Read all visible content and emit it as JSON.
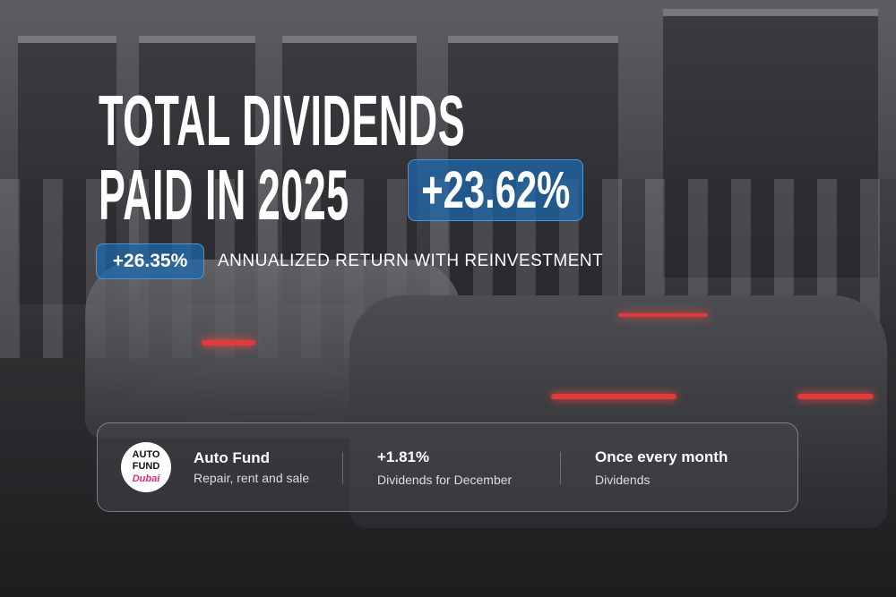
{
  "headline": {
    "line1": "TOTAL DIVIDENDS",
    "line2": "PAID IN 2025"
  },
  "total_badge": "+23.62%",
  "annualized": {
    "badge": "+26.35%",
    "label": "ANNUALIZED RETURN WITH REINVESTMENT"
  },
  "card": {
    "logo_text": [
      "AUTO",
      "FUND",
      "Dubai"
    ],
    "fund": {
      "title": "Auto Fund",
      "subtitle": "Repair, rent and sale"
    },
    "december": {
      "value": "+1.81%",
      "label": "Dividends for December"
    },
    "frequency": {
      "value": "Once every month",
      "label": "Dividends"
    }
  },
  "colors": {
    "badge": "#1c69af",
    "badge_border": "#50a0e6",
    "logo_accent": "#e3287a"
  }
}
